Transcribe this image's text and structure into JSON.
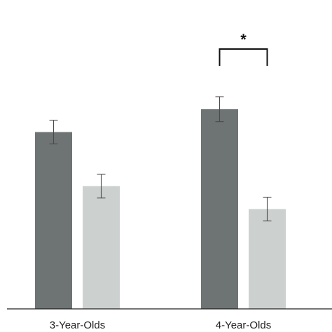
{
  "chart_data": {
    "type": "bar",
    "categories": [
      "3-Year-Olds",
      "4-Year-Olds"
    ],
    "series": [
      {
        "values": [
          0.85,
          0.96
        ],
        "errors": [
          0.057,
          0.06
        ],
        "color": "#6d7473"
      },
      {
        "values": [
          0.59,
          0.48
        ],
        "errors": [
          0.057,
          0.057
        ],
        "color": "#ccd0cf"
      }
    ],
    "ylim": [
      0,
      1.0
    ],
    "grid": false,
    "annotations": [
      {
        "category": "4-Year-Olds",
        "text": "*"
      }
    ]
  }
}
